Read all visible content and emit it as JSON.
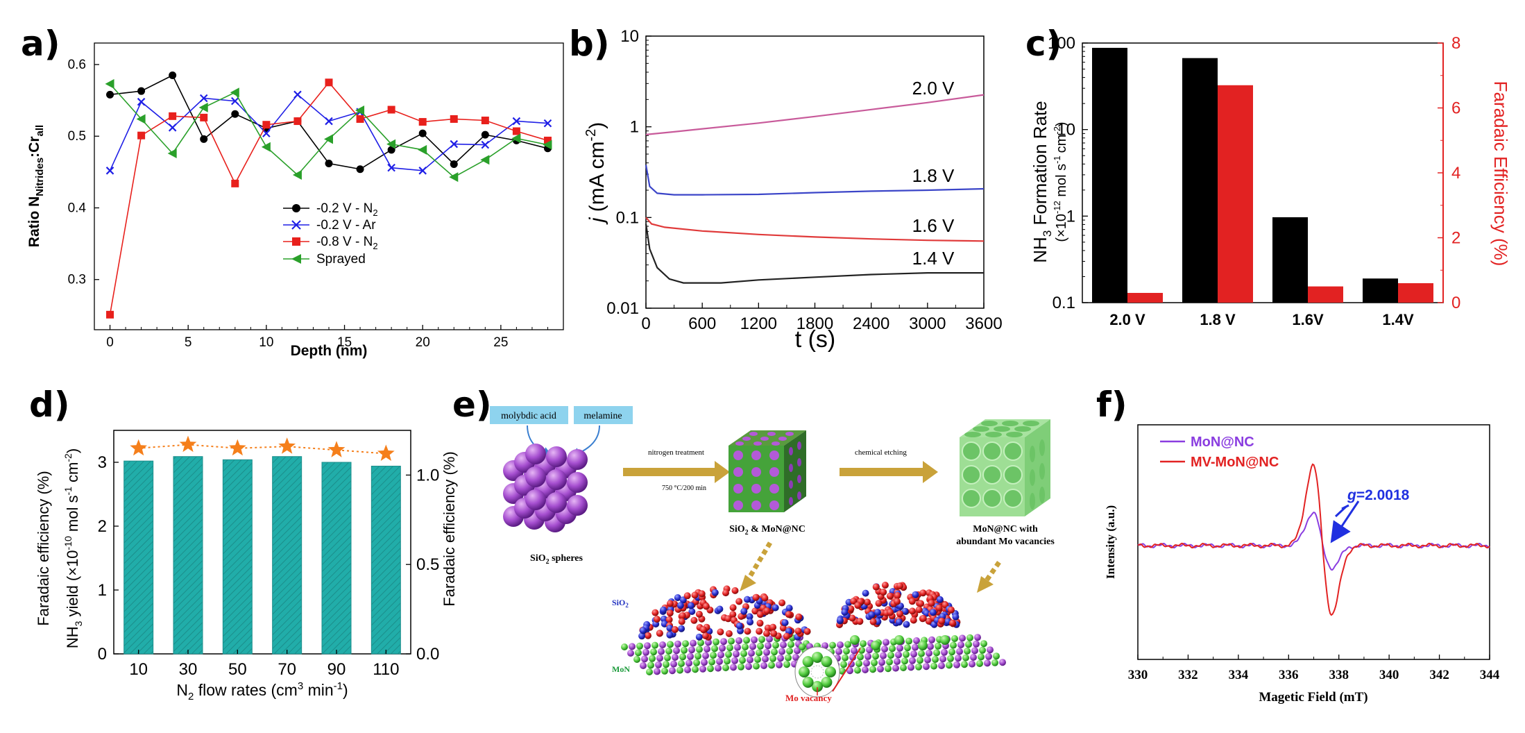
{
  "panels": [
    {
      "id": "a",
      "label": "a)"
    },
    {
      "id": "b",
      "label": "b)"
    },
    {
      "id": "c",
      "label": "c)"
    },
    {
      "id": "d",
      "label": "d)"
    },
    {
      "id": "e",
      "label": "e)"
    },
    {
      "id": "f",
      "label": "f)"
    }
  ],
  "colors": {
    "black": "#000000",
    "blue": "#1f1fe6",
    "red": "#e8201c",
    "green": "#2aa02a",
    "pink": "#c85a9a",
    "teal": "#21ada9",
    "orange": "#f57f1b",
    "purple": "#8a3de0",
    "fred": "#e22222"
  },
  "chart_data": [
    {
      "panel": "a",
      "type": "line",
      "xlabel": "Depth (nm)",
      "ylabel_parts": {
        "pre": "Ratio N",
        "sub1": "Nitrides",
        "mid": ":Cr",
        "sub2": "all"
      },
      "xlim": [
        -1,
        29
      ],
      "ylim": [
        0.23,
        0.63
      ],
      "xticks": [
        0,
        5,
        10,
        15,
        20,
        25
      ],
      "yticks": [
        0.3,
        0.4,
        0.5,
        0.6
      ],
      "x": [
        0,
        2,
        4,
        6,
        8,
        10,
        12,
        14,
        16,
        18,
        20,
        22,
        24,
        26,
        28
      ],
      "series": [
        {
          "name": "-0.2 V - N",
          "name_sub": "2",
          "marker": "circle",
          "color": "#000000",
          "values": [
            0.558,
            0.563,
            0.585,
            0.496,
            0.531,
            0.511,
            0.521,
            0.462,
            0.454,
            0.481,
            0.504,
            0.461,
            0.502,
            0.494,
            0.483
          ]
        },
        {
          "name": "-0.2 V - Ar",
          "name_sub": "",
          "marker": "x",
          "color": "#1f1fe6",
          "values": [
            0.452,
            0.548,
            0.512,
            0.553,
            0.549,
            0.504,
            0.558,
            0.521,
            0.534,
            0.456,
            0.452,
            0.489,
            0.488,
            0.521,
            0.518
          ]
        },
        {
          "name": "-0.8 V - N",
          "name_sub": "2",
          "marker": "square",
          "color": "#e8201c",
          "values": [
            0.251,
            0.501,
            0.528,
            0.526,
            0.434,
            0.516,
            0.521,
            0.575,
            0.524,
            0.537,
            0.52,
            0.524,
            0.522,
            0.507,
            0.494
          ]
        },
        {
          "name": "Sprayed",
          "name_sub": "",
          "marker": "triangle",
          "color": "#2aa02a",
          "values": [
            0.573,
            0.524,
            0.476,
            0.54,
            0.561,
            0.485,
            0.446,
            0.496,
            0.536,
            0.489,
            0.481,
            0.443,
            0.467,
            0.497,
            0.488
          ]
        }
      ]
    },
    {
      "panel": "b",
      "type": "line",
      "xlabel": "t (s)",
      "ylabel_sym": "j",
      "ylabel_unit": "(mA cm",
      "ylabel_exp": "-2",
      "ylabel_close": ")",
      "xlim": [
        0,
        3600
      ],
      "ylog": [
        0.01,
        10
      ],
      "xticks": [
        0,
        600,
        1200,
        1800,
        2400,
        3000,
        3600
      ],
      "yticks": [
        {
          "v": 0.01,
          "t": "0.01"
        },
        {
          "v": 0.1,
          "t": "0.1"
        },
        {
          "v": 1,
          "t": "1"
        },
        {
          "v": 10,
          "t": "10"
        }
      ],
      "series": [
        {
          "name": "2.0 V",
          "color": "#c85a9a",
          "points": [
            [
              0,
              0.82
            ],
            [
              300,
              0.88
            ],
            [
              600,
              0.95
            ],
            [
              1200,
              1.1
            ],
            [
              1800,
              1.3
            ],
            [
              2400,
              1.55
            ],
            [
              3000,
              1.85
            ],
            [
              3600,
              2.25
            ]
          ]
        },
        {
          "name": "1.8 V",
          "color": "#3b45c8",
          "points": [
            [
              0,
              0.38
            ],
            [
              40,
              0.22
            ],
            [
              120,
              0.185
            ],
            [
              300,
              0.178
            ],
            [
              600,
              0.178
            ],
            [
              1200,
              0.18
            ],
            [
              1800,
              0.188
            ],
            [
              2400,
              0.195
            ],
            [
              3000,
              0.2
            ],
            [
              3600,
              0.207
            ]
          ]
        },
        {
          "name": "1.6 V",
          "color": "#e03a3a",
          "points": [
            [
              0,
              0.1
            ],
            [
              60,
              0.085
            ],
            [
              200,
              0.078
            ],
            [
              600,
              0.071
            ],
            [
              1200,
              0.065
            ],
            [
              1800,
              0.061
            ],
            [
              2400,
              0.058
            ],
            [
              3000,
              0.056
            ],
            [
              3600,
              0.055
            ]
          ]
        },
        {
          "name": "1.4 V",
          "color": "#222222",
          "points": [
            [
              0,
              0.085
            ],
            [
              40,
              0.045
            ],
            [
              120,
              0.028
            ],
            [
              250,
              0.021
            ],
            [
              400,
              0.019
            ],
            [
              800,
              0.019
            ],
            [
              1200,
              0.0205
            ],
            [
              1800,
              0.022
            ],
            [
              2400,
              0.0235
            ],
            [
              3000,
              0.0245
            ],
            [
              3600,
              0.0245
            ]
          ]
        }
      ]
    },
    {
      "panel": "c",
      "type": "bar",
      "categories": [
        "2.0 V",
        "1.8 V",
        "1.6V",
        "1.4V"
      ],
      "ylabel_left": {
        "pre": "NH",
        "sub": "3",
        "post": " Formation Rate",
        "line2pre": "(×10",
        "line2exp": "-12",
        "line2mid": " mol s",
        "line2exp2": "-1",
        "line2mid2": "cm",
        "line2exp3": "-2",
        "line2close": ")"
      },
      "ylabel_right": "Faradaic Efficiency (%)",
      "ylog": [
        0.1,
        100
      ],
      "y2lim": [
        0,
        8
      ],
      "yticks": [
        {
          "v": 0.1,
          "t": "0.1"
        },
        {
          "v": 1,
          "t": "1"
        },
        {
          "v": 10,
          "t": "10"
        },
        {
          "v": 100,
          "t": "100"
        }
      ],
      "y2ticks": [
        0,
        2,
        4,
        6,
        8
      ],
      "series": [
        {
          "name": "NH3 Formation Rate",
          "color": "#000000",
          "values": [
            88,
            67,
            0.97,
            0.19
          ]
        },
        {
          "name": "Faradaic Efficiency",
          "color": "#e22222",
          "values": [
            0.3,
            6.7,
            0.5,
            0.6
          ]
        }
      ]
    },
    {
      "panel": "d",
      "type": "bar",
      "categories": [
        "10",
        "30",
        "50",
        "70",
        "90",
        "110"
      ],
      "xlabel_parts": {
        "pre": "N",
        "sub": "2",
        "post": " flow rates (cm",
        "exp": "3",
        "post2": " min",
        "exp2": "-1",
        "close": ")"
      },
      "ylabel_left_front": "Faradaic efficiency (%)",
      "ylabel_left": {
        "pre": "NH",
        "sub": "3",
        "post": " yield (×10",
        "exp": "-10",
        "post2": " mol s",
        "exp2": "-1",
        "post3": " cm",
        "exp3": "-2",
        "close": ")"
      },
      "ylabel_right": "Faradaic efficiency (%)",
      "ylim": [
        0,
        3.5
      ],
      "y2lim": [
        0,
        1.25
      ],
      "yticks": [
        0,
        1,
        2,
        3
      ],
      "y2ticks": [
        {
          "v": 0,
          "t": "0.0"
        },
        {
          "v": 0.5,
          "t": "0.5"
        },
        {
          "v": 1,
          "t": "1.0"
        }
      ],
      "series": [
        {
          "name": "NH3 yield",
          "color": "#21ada9",
          "values": [
            3.02,
            3.09,
            3.04,
            3.09,
            3.0,
            2.94
          ]
        },
        {
          "name": "Faradaic efficiency",
          "color": "#f57f1b",
          "values": [
            1.15,
            1.17,
            1.15,
            1.16,
            1.14,
            1.12
          ]
        }
      ]
    },
    {
      "panel": "f",
      "type": "line",
      "xlabel": "Magetic Field (mT)",
      "ylabel": "Intensity (a.u.)",
      "xlim": [
        330,
        344
      ],
      "xticks": [
        330,
        332,
        334,
        336,
        338,
        340,
        342,
        344
      ],
      "annotation": {
        "g": "g",
        "rest": "=2.0018"
      },
      "series": [
        {
          "name": "MoN@NC",
          "color": "#8a3de0",
          "amp": 0.3,
          "trough": -0.2
        },
        {
          "name": "MV-MoN@NC",
          "color": "#e22222",
          "amp": 0.72,
          "trough": -0.62
        }
      ]
    }
  ],
  "schematic": {
    "molybdic": "molybdic acid",
    "melamine": "melamine",
    "nitrogen": "nitrogen treatment",
    "cond": "750 °C/200 min",
    "etch": "chemical etching",
    "sio2_pre": "SiO",
    "sio2_sub": "2",
    "sio2_post": " spheres",
    "mid_pre": "SiO",
    "mid_sub": "2",
    "mid_post": " & MoN@NC",
    "right1": "MoN@NC with",
    "right2": "abundant Mo vacancies",
    "sio2_lbl_pre": "SiO",
    "sio2_lbl_sub": "2",
    "mon": "MoN",
    "vacancy": "Mo vacancy"
  }
}
